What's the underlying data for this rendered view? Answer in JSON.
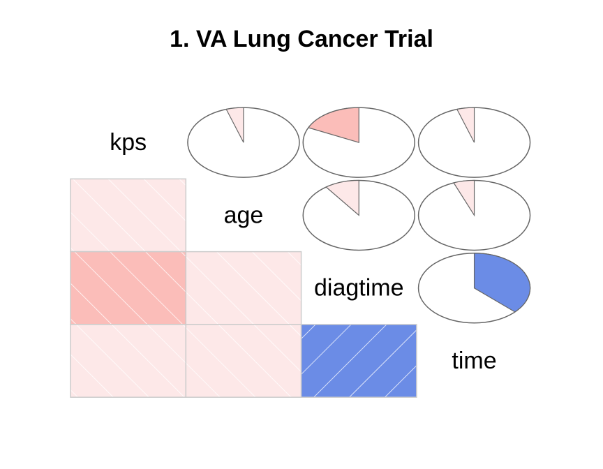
{
  "chart_data": {
    "type": "corrgram",
    "title": "1. VA Lung Cancer Trial",
    "variables": [
      "kps",
      "age",
      "diagtime",
      "time"
    ],
    "matrix": [
      [
        null,
        -0.05,
        -0.18,
        -0.05
      ],
      [
        null,
        null,
        -0.1,
        -0.06
      ],
      [
        null,
        null,
        null,
        0.37
      ],
      [
        null,
        null,
        null,
        null
      ]
    ],
    "colors": [
      [
        null,
        "#fde8e8",
        "#fbbdb9",
        "#fde8e8"
      ],
      [
        null,
        null,
        "#fde8e8",
        "#fde8e8"
      ],
      [
        null,
        null,
        null,
        "#6b8ce6"
      ],
      [
        null,
        null,
        null,
        null
      ]
    ]
  }
}
